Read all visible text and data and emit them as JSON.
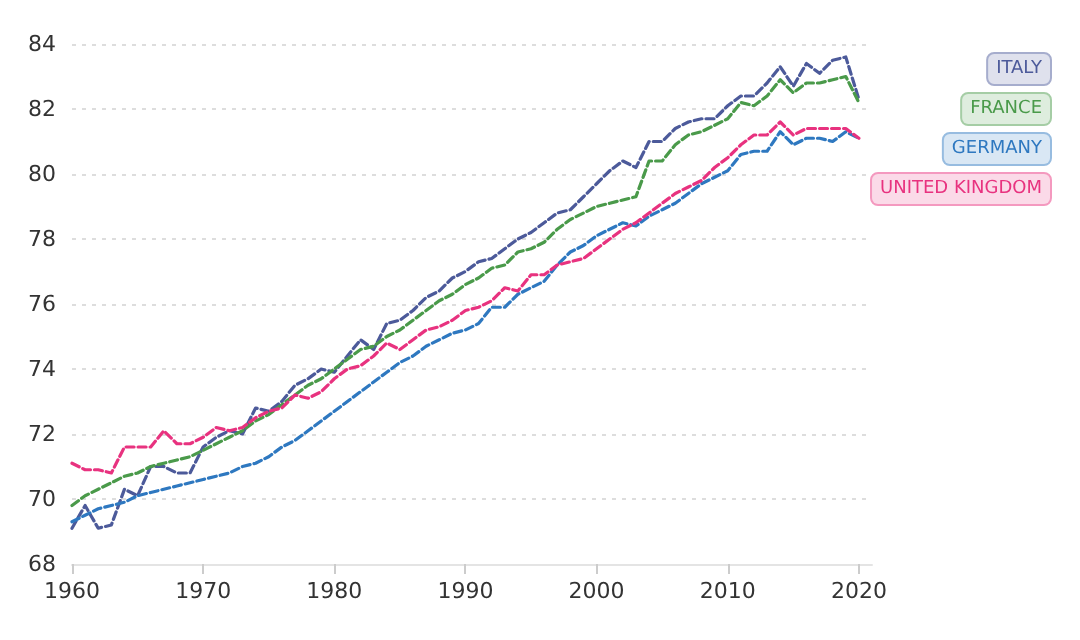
{
  "chart_data": {
    "type": "line",
    "x": [
      1960,
      1961,
      1962,
      1963,
      1964,
      1965,
      1966,
      1967,
      1968,
      1969,
      1970,
      1971,
      1972,
      1973,
      1974,
      1975,
      1976,
      1977,
      1978,
      1979,
      1980,
      1981,
      1982,
      1983,
      1984,
      1985,
      1986,
      1987,
      1988,
      1989,
      1990,
      1991,
      1992,
      1993,
      1994,
      1995,
      1996,
      1997,
      1998,
      1999,
      2000,
      2001,
      2002,
      2003,
      2004,
      2005,
      2006,
      2007,
      2008,
      2009,
      2010,
      2011,
      2012,
      2013,
      2014,
      2015,
      2016,
      2017,
      2018,
      2019,
      2020
    ],
    "series": [
      {
        "name": "ITALY",
        "color": "#4c5a9a",
        "values": [
          69.1,
          69.8,
          69.1,
          69.2,
          70.3,
          70.1,
          71.0,
          71.0,
          70.8,
          70.8,
          71.6,
          71.9,
          72.1,
          72.0,
          72.8,
          72.7,
          73.0,
          73.5,
          73.7,
          74.0,
          73.9,
          74.4,
          74.9,
          74.6,
          75.4,
          75.5,
          75.8,
          76.2,
          76.4,
          76.8,
          77.0,
          77.3,
          77.4,
          77.7,
          78.0,
          78.2,
          78.5,
          78.8,
          78.9,
          79.3,
          79.7,
          80.1,
          80.4,
          80.2,
          81.0,
          81.0,
          81.4,
          81.6,
          81.7,
          81.7,
          82.1,
          82.4,
          82.4,
          82.8,
          83.3,
          82.7,
          83.4,
          83.1,
          83.5,
          83.6,
          82.3
        ]
      },
      {
        "name": "FRANCE",
        "color": "#4a9a4a",
        "values": [
          69.8,
          70.1,
          70.3,
          70.5,
          70.7,
          70.8,
          71.0,
          71.1,
          71.2,
          71.3,
          71.5,
          71.7,
          71.9,
          72.1,
          72.4,
          72.6,
          72.9,
          73.2,
          73.5,
          73.7,
          74.0,
          74.3,
          74.6,
          74.7,
          75.0,
          75.2,
          75.5,
          75.8,
          76.1,
          76.3,
          76.6,
          76.8,
          77.1,
          77.2,
          77.6,
          77.7,
          77.9,
          78.3,
          78.6,
          78.8,
          79.0,
          79.1,
          79.2,
          79.3,
          80.4,
          80.4,
          80.9,
          81.2,
          81.3,
          81.5,
          81.7,
          82.2,
          82.1,
          82.4,
          82.9,
          82.5,
          82.8,
          82.8,
          82.9,
          83.0,
          82.2
        ]
      },
      {
        "name": "GERMANY",
        "color": "#2e78c0",
        "values": [
          69.3,
          69.5,
          69.7,
          69.8,
          69.9,
          70.1,
          70.2,
          70.3,
          70.4,
          70.5,
          70.6,
          70.7,
          70.8,
          71.0,
          71.1,
          71.3,
          71.6,
          71.8,
          72.1,
          72.4,
          72.7,
          73.0,
          73.3,
          73.6,
          73.9,
          74.2,
          74.4,
          74.7,
          74.9,
          75.1,
          75.2,
          75.4,
          75.9,
          75.9,
          76.3,
          76.5,
          76.7,
          77.2,
          77.6,
          77.8,
          78.1,
          78.3,
          78.5,
          78.4,
          78.7,
          78.9,
          79.1,
          79.4,
          79.7,
          79.9,
          80.1,
          80.6,
          80.7,
          80.7,
          81.3,
          80.9,
          81.1,
          81.1,
          81.0,
          81.3,
          81.1
        ]
      },
      {
        "name": "UNITED KINGDOM",
        "color": "#e8327f",
        "values": [
          71.1,
          70.9,
          70.9,
          70.8,
          71.6,
          71.6,
          71.6,
          72.1,
          71.7,
          71.7,
          71.9,
          72.2,
          72.1,
          72.2,
          72.5,
          72.7,
          72.8,
          73.2,
          73.1,
          73.3,
          73.7,
          74.0,
          74.1,
          74.4,
          74.8,
          74.6,
          74.9,
          75.2,
          75.3,
          75.5,
          75.8,
          75.9,
          76.1,
          76.5,
          76.4,
          76.9,
          76.9,
          77.2,
          77.3,
          77.4,
          77.7,
          78.0,
          78.3,
          78.5,
          78.8,
          79.1,
          79.4,
          79.6,
          79.8,
          80.2,
          80.5,
          80.9,
          81.2,
          81.2,
          81.6,
          81.2,
          81.4,
          81.4,
          81.4,
          81.4,
          81.1
        ]
      }
    ],
    "xlim": [
      1960,
      2021
    ],
    "xticks": [
      1960,
      1970,
      1980,
      1990,
      2000,
      2010,
      2020
    ],
    "ylim": [
      68,
      84
    ],
    "yticks": [
      68,
      70,
      72,
      74,
      76,
      78,
      80,
      82,
      84
    ],
    "grid": "y",
    "legend": "right",
    "marker": "none",
    "line_style": "dashed"
  }
}
